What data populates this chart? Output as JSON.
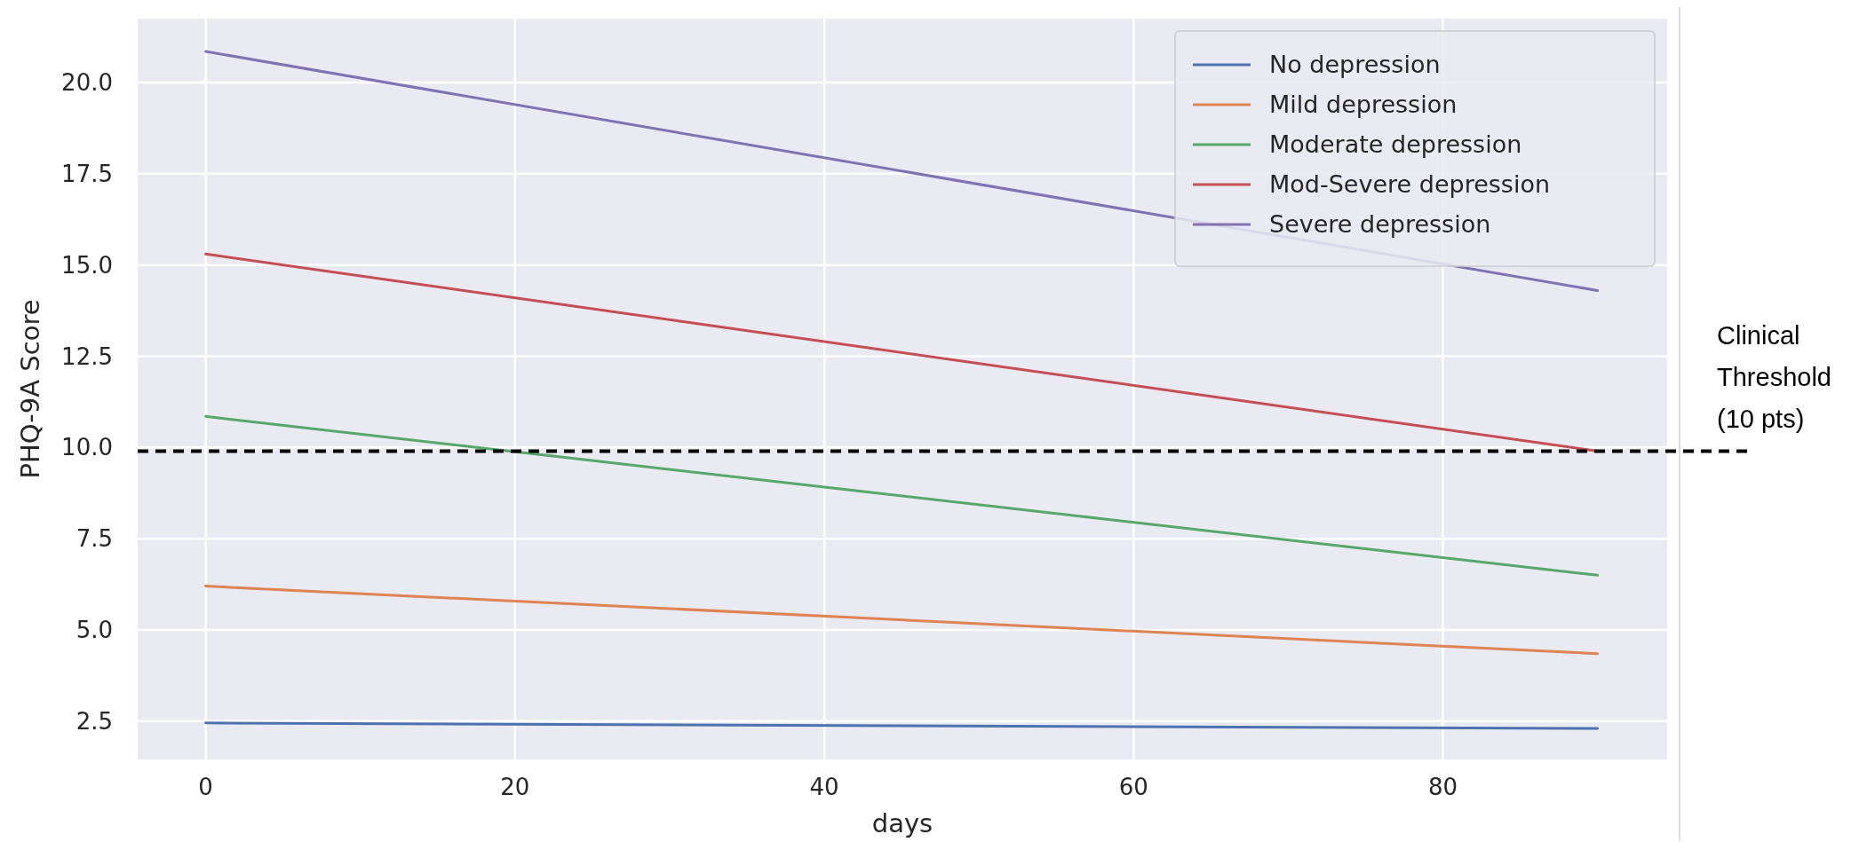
{
  "chart_data": {
    "type": "line",
    "xlabel": "days",
    "ylabel": "PHQ-9A Score",
    "x": [
      0,
      90
    ],
    "series": [
      {
        "name": "No depression",
        "color": "#4c72b0",
        "values": [
          2.45,
          2.3
        ]
      },
      {
        "name": "Mild depression",
        "color": "#dd8452",
        "values": [
          6.2,
          4.35
        ]
      },
      {
        "name": "Moderate depression",
        "color": "#55a868",
        "values": [
          10.85,
          6.5
        ]
      },
      {
        "name": "Mod-Severe depression",
        "color": "#c44e52",
        "values": [
          15.3,
          9.9
        ]
      },
      {
        "name": "Severe depression",
        "color": "#8172b3",
        "values": [
          20.85,
          14.3
        ]
      }
    ],
    "xlim": [
      -4.4,
      94.5
    ],
    "xticks": [
      0,
      20,
      40,
      60,
      80
    ],
    "ylim": [
      1.45,
      21.75
    ],
    "yticks": [
      {
        "value": 2.5,
        "label": "2.5"
      },
      {
        "value": 5,
        "label": "5.0"
      },
      {
        "value": 7.5,
        "label": "7.5"
      },
      {
        "value": 10,
        "label": "10.0"
      },
      {
        "value": 12.5,
        "label": "12.5"
      },
      {
        "value": 15,
        "label": "15.0"
      },
      {
        "value": 17.5,
        "label": "17.5"
      },
      {
        "value": 20,
        "label": "20.0"
      }
    ],
    "ref_lines": [
      {
        "axis": "y",
        "value": 9.9,
        "label": "Clinical Threshold (10 pts)",
        "color": "#000000",
        "line_style": "dashed"
      }
    ],
    "grid": true,
    "legend": "top right",
    "line_style": "solid",
    "marker": "none"
  }
}
